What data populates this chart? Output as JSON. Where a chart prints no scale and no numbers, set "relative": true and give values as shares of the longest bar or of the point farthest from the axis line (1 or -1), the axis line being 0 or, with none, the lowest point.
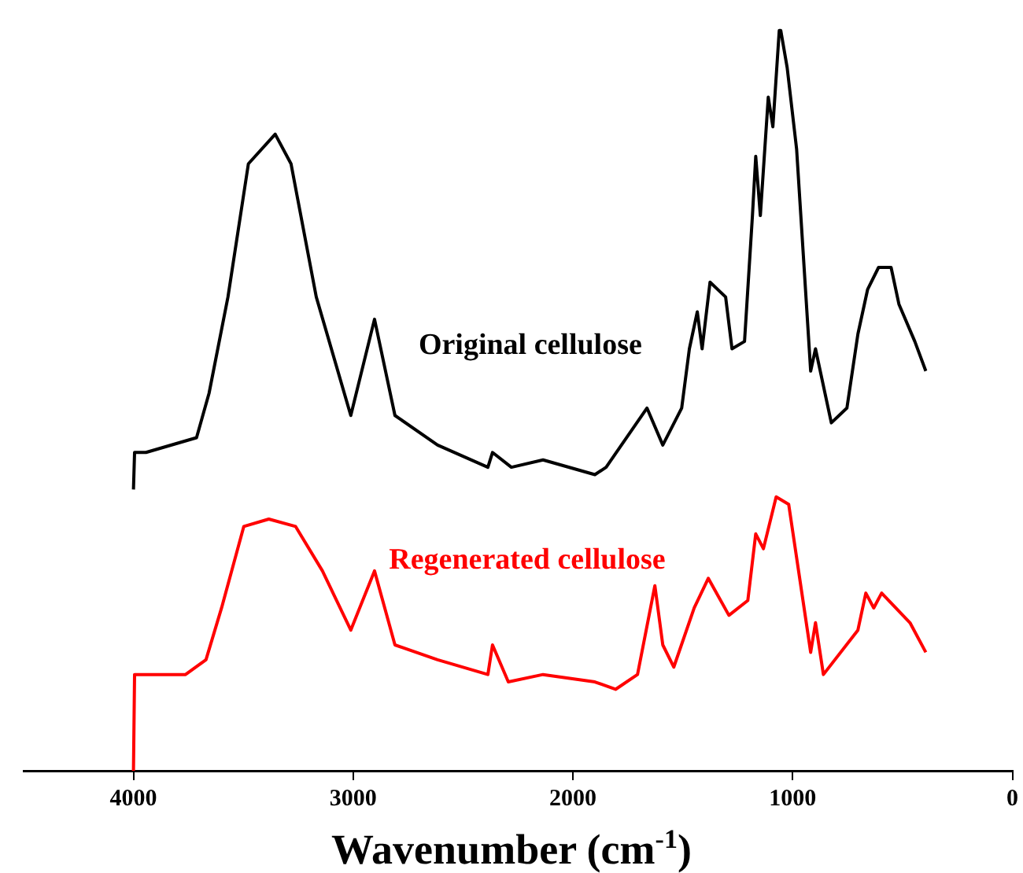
{
  "chart_data": {
    "type": "line",
    "xlabel": "Wavenumber (cm$^{-1}$)",
    "xlim": [
      4500,
      0
    ],
    "xticks": [
      4000,
      3000,
      2000,
      1000,
      0
    ],
    "relative": true,
    "grid": false,
    "legend": false,
    "marker": "none",
    "tick_labels": "x",
    "series": [
      {
        "name": "Original cellulose",
        "color": "#000000",
        "x": [
          4000,
          3995,
          3943,
          3713,
          3656,
          3570,
          3477,
          3355,
          3283,
          3168,
          3011,
          2903,
          2810,
          2616,
          2387,
          2366,
          2280,
          2136,
          1900,
          1849,
          1663,
          1591,
          1505,
          1470,
          1434,
          1412,
          1376,
          1305,
          1276,
          1219,
          1183,
          1168,
          1147,
          1111,
          1090,
          1061,
          1054,
          1025,
          982,
          918,
          896,
          824,
          753,
          703,
          659,
          609,
          552,
          516,
          444,
          394
        ],
        "values": [
          0.38,
          0.43,
          0.43,
          0.45,
          0.51,
          0.64,
          0.82,
          0.86,
          0.82,
          0.64,
          0.48,
          0.61,
          0.48,
          0.44,
          0.41,
          0.43,
          0.41,
          0.42,
          0.4,
          0.41,
          0.49,
          0.44,
          0.49,
          0.57,
          0.62,
          0.57,
          0.66,
          0.64,
          0.57,
          0.58,
          0.75,
          0.83,
          0.75,
          0.91,
          0.87,
          1.0,
          1.0,
          0.95,
          0.84,
          0.54,
          0.57,
          0.47,
          0.49,
          0.59,
          0.65,
          0.68,
          0.68,
          0.63,
          0.58,
          0.54
        ]
      },
      {
        "name": "Regenerated cellulose",
        "color": "#ff0000",
        "x": [
          4000,
          3995,
          3763,
          3670,
          3599,
          3498,
          3384,
          3262,
          3140,
          3011,
          2903,
          2810,
          2616,
          2387,
          2366,
          2294,
          2136,
          1900,
          1806,
          1706,
          1627,
          1591,
          1541,
          1448,
          1384,
          1290,
          1204,
          1168,
          1133,
          1075,
          1018,
          918,
          896,
          860,
          703,
          667,
          631,
          595,
          466,
          394
        ],
        "values": [
          0,
          0.13,
          0.13,
          0.15,
          0.22,
          0.33,
          0.34,
          0.33,
          0.27,
          0.19,
          0.27,
          0.17,
          0.15,
          0.13,
          0.17,
          0.12,
          0.13,
          0.12,
          0.11,
          0.13,
          0.25,
          0.17,
          0.14,
          0.22,
          0.26,
          0.21,
          0.23,
          0.32,
          0.3,
          0.37,
          0.36,
          0.16,
          0.2,
          0.13,
          0.19,
          0.24,
          0.22,
          0.24,
          0.2,
          0.16
        ]
      }
    ]
  }
}
